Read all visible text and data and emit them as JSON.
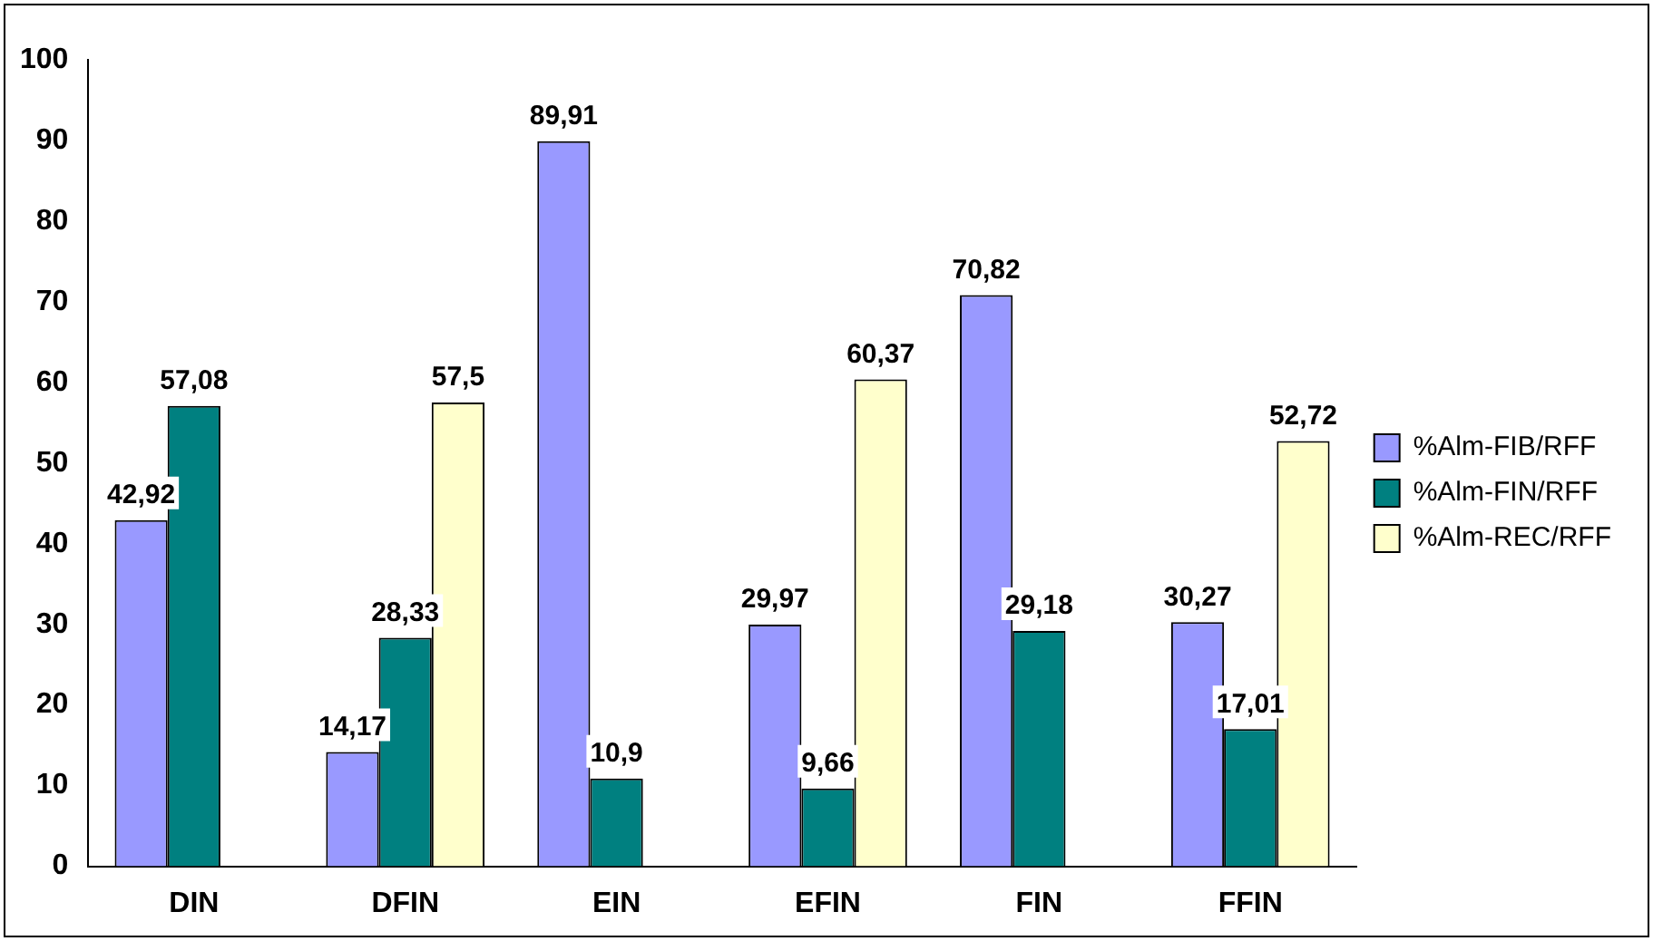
{
  "chart_data": {
    "type": "bar",
    "categories": [
      "DIN",
      "DFIN",
      "EIN",
      "EFIN",
      "FIN",
      "FFIN"
    ],
    "series": [
      {
        "name": "%Alm-FIB/RFF",
        "color": "#9999ff",
        "values": [
          42.92,
          14.17,
          89.91,
          29.97,
          70.82,
          30.27
        ],
        "value_labels": [
          "42,92",
          "14,17",
          "89,91",
          "29,97",
          "70,82",
          "30,27"
        ]
      },
      {
        "name": "%Alm-FIN/RFF",
        "color": "#008080",
        "values": [
          57.08,
          28.33,
          10.9,
          9.66,
          29.18,
          17.01
        ],
        "value_labels": [
          "57,08",
          "28,33",
          "10,9",
          "9,66",
          "29,18",
          "17,01"
        ]
      },
      {
        "name": "%Alm-REC/RFF",
        "color": "#ffffcc",
        "values": [
          null,
          57.5,
          null,
          60.37,
          null,
          52.72
        ],
        "value_labels": [
          null,
          "57,5",
          null,
          "60,37",
          null,
          "52,72"
        ]
      }
    ],
    "ylim": [
      0,
      100
    ],
    "yticks": [
      0,
      10,
      20,
      30,
      40,
      50,
      60,
      70,
      80,
      90,
      100
    ],
    "grid": false,
    "legend": "right"
  }
}
